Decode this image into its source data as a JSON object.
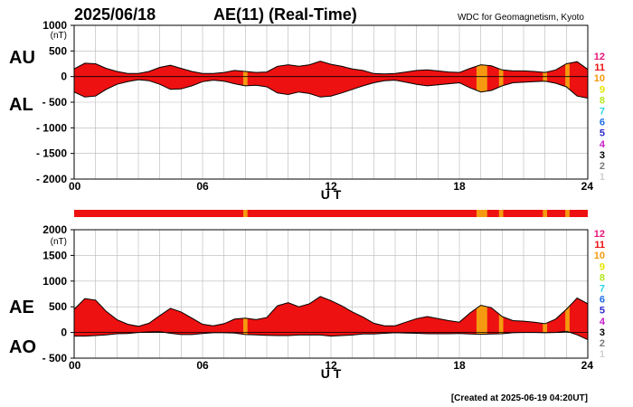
{
  "header": {
    "date": "2025/06/18",
    "title": "AE(11) (Real-Time)",
    "source": "WDC for Geomagnetism, Kyoto",
    "footer": "[Created at 2025-06-19 04:20UT]"
  },
  "legend_colors": {
    "12": "#e8157a",
    "11": "#ee1111",
    "10": "#f59a10",
    "9": "#e6e600",
    "8": "#b5e61d",
    "7": "#2fd5e8",
    "6": "#1f6fe6",
    "5": "#2a2acb",
    "4": "#c51fc8",
    "3": "#000000",
    "2": "#7a7a7a",
    "1": "#d0d0d0"
  },
  "chart_data": [
    {
      "type": "area",
      "name": "AU/AL",
      "ylabel_top": "AU",
      "ylabel_bottom": "AL",
      "unit_label": "(nT)",
      "xlabel": "U T",
      "xlim": [
        0,
        24
      ],
      "ylim": [
        -2000,
        1000
      ],
      "xticks": [
        "00",
        "06",
        "12",
        "18",
        "24"
      ],
      "yticks": [
        "1000",
        "500",
        "0",
        "- 500",
        "- 1000",
        "- 1500",
        "- 2000"
      ],
      "ytick_values": [
        1000,
        500,
        0,
        -500,
        -1000,
        -1500,
        -2000
      ],
      "legend": [
        "12",
        "11",
        "10",
        "9",
        "8",
        "7",
        "6",
        "5",
        "4",
        "3",
        "2",
        "1"
      ],
      "hours": [
        0,
        0.5,
        1,
        1.5,
        2,
        2.5,
        3,
        3.5,
        4,
        4.5,
        5,
        5.5,
        6,
        6.5,
        7,
        7.5,
        8,
        8.5,
        9,
        9.5,
        10,
        10.5,
        11,
        11.5,
        12,
        12.5,
        13,
        13.5,
        14,
        14.5,
        15,
        15.5,
        16,
        16.5,
        17,
        17.5,
        18,
        18.5,
        19,
        19.5,
        20,
        20.5,
        21,
        21.5,
        22,
        22.5,
        23,
        23.5,
        24
      ],
      "au": [
        150,
        260,
        250,
        160,
        100,
        60,
        60,
        100,
        180,
        220,
        160,
        100,
        60,
        60,
        80,
        120,
        100,
        80,
        90,
        200,
        230,
        200,
        230,
        300,
        240,
        200,
        150,
        120,
        60,
        50,
        60,
        90,
        120,
        130,
        110,
        90,
        80,
        160,
        230,
        210,
        130,
        110,
        110,
        100,
        80,
        130,
        250,
        290,
        140
      ],
      "al": [
        -300,
        -400,
        -380,
        -250,
        -150,
        -100,
        -60,
        -80,
        -150,
        -250,
        -240,
        -180,
        -100,
        -70,
        -90,
        -140,
        -180,
        -170,
        -200,
        -320,
        -350,
        -300,
        -330,
        -400,
        -380,
        -320,
        -250,
        -180,
        -120,
        -80,
        -70,
        -110,
        -150,
        -180,
        -160,
        -140,
        -120,
        -220,
        -300,
        -270,
        -180,
        -120,
        -110,
        -100,
        -90,
        -130,
        -200,
        -380,
        -420
      ]
    },
    {
      "type": "area",
      "name": "AE/AO",
      "ylabel_top": "AE",
      "ylabel_bottom": "AO",
      "unit_label": "(nT)",
      "xlabel": "U T",
      "xlim": [
        0,
        24
      ],
      "ylim": [
        -500,
        2000
      ],
      "xticks": [
        "00",
        "06",
        "12",
        "18",
        "24"
      ],
      "yticks": [
        "2000",
        "1500",
        "1000",
        "500",
        "0",
        "- 500"
      ],
      "ytick_values": [
        2000,
        1500,
        1000,
        500,
        0,
        -500
      ],
      "legend": [
        "12",
        "11",
        "10",
        "9",
        "8",
        "7",
        "6",
        "5",
        "4",
        "3",
        "2",
        "1"
      ],
      "hours": [
        0,
        0.5,
        1,
        1.5,
        2,
        2.5,
        3,
        3.5,
        4,
        4.5,
        5,
        5.5,
        6,
        6.5,
        7,
        7.5,
        8,
        8.5,
        9,
        9.5,
        10,
        10.5,
        11,
        11.5,
        12,
        12.5,
        13,
        13.5,
        14,
        14.5,
        15,
        15.5,
        16,
        16.5,
        17,
        17.5,
        18,
        18.5,
        19,
        19.5,
        20,
        20.5,
        21,
        21.5,
        22,
        22.5,
        23,
        23.5,
        24
      ],
      "ae": [
        450,
        660,
        630,
        410,
        250,
        160,
        120,
        180,
        330,
        470,
        400,
        280,
        160,
        130,
        170,
        260,
        280,
        250,
        290,
        520,
        580,
        500,
        560,
        700,
        620,
        520,
        400,
        300,
        180,
        130,
        130,
        200,
        270,
        310,
        270,
        230,
        200,
        380,
        530,
        480,
        310,
        230,
        220,
        200,
        170,
        260,
        450,
        670,
        560
      ],
      "ao": [
        -70,
        -70,
        -60,
        -45,
        -25,
        -20,
        0,
        10,
        15,
        -15,
        -40,
        -40,
        -20,
        -5,
        -5,
        -10,
        -40,
        -45,
        -55,
        -60,
        -60,
        -50,
        -50,
        -50,
        -70,
        -60,
        -50,
        -30,
        -30,
        -15,
        -5,
        -10,
        -15,
        -25,
        -25,
        -25,
        -20,
        -30,
        -35,
        -30,
        -25,
        -5,
        0,
        0,
        -5,
        0,
        25,
        -45,
        -140
      ]
    }
  ],
  "activity_strip": {
    "base_color": "#ee1111",
    "highlight_color": "#f59a10",
    "highlight_hours": [
      [
        7.9,
        8.1
      ],
      [
        18.8,
        19.3
      ],
      [
        19.85,
        20.05
      ],
      [
        21.9,
        22.1
      ],
      [
        22.95,
        23.15
      ]
    ]
  }
}
